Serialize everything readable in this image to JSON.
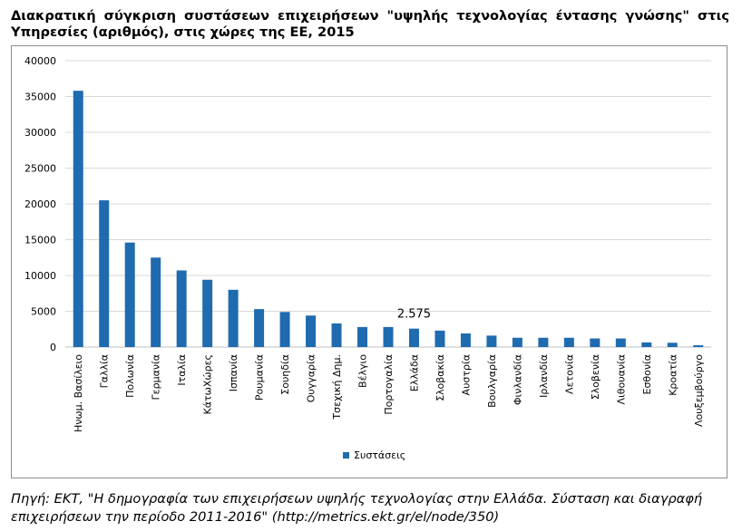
{
  "title": "Διακρατική σύγκριση συστάσεων επιχειρήσεων \"υψηλής τεχνολογίας έντασης γνώσης\" στις Υπηρεσίες (αριθμός), στις χώρες της ΕΕ, 2015",
  "source": "Πηγή: ΕΚΤ, \"Η δημογραφία των επιχειρήσεων υψηλής τεχνολογίας στην Ελλάδα. Σύσταση και διαγραφή επιχειρήσεων την περίοδο 2011-2016\" (http://metrics.ekt.gr/el/node/350)",
  "colors": {
    "bar": "#1f6bb0",
    "grid": "#d9d9d9",
    "axis": "#bfbfbf"
  },
  "chart_data": {
    "type": "bar",
    "title": "",
    "xlabel": "",
    "ylabel": "",
    "ylim": [
      0,
      40000
    ],
    "yticks": [
      "0",
      "5000",
      "10000",
      "15000",
      "20000",
      "25000",
      "30000",
      "35000",
      "40000"
    ],
    "grid": true,
    "legend_position": "bottom",
    "categories": [
      "Ηνωμ. Βασίλειο",
      "Γαλλία",
      "Πολωνία",
      "Γερμανία",
      "Ιταλία",
      "ΚάτωΧώρες",
      "Ισπανία",
      "Ρουμανία",
      "Σουηδία",
      "Ουγγαρία",
      "Τσεχική Δημ.",
      "Βέλγιο",
      "Πορτογαλία",
      "Ελλάδα",
      "Σλοβακία",
      "Αυστρία",
      "Βουλγαρία",
      "Φινλανδία",
      "Ιρλανδία",
      "Λετονία",
      "Σλοβενία",
      "Λιθουανία",
      "Εσθονία",
      "Κροατία",
      "Λουξεμβούργο"
    ],
    "series": [
      {
        "name": "Συστάσεις",
        "values": [
          35800,
          20500,
          14600,
          12500,
          10700,
          9400,
          8000,
          5300,
          4900,
          4400,
          3300,
          2800,
          2800,
          2575,
          2300,
          1900,
          1600,
          1300,
          1300,
          1300,
          1200,
          1200,
          650,
          600,
          250
        ]
      }
    ],
    "annotations": [
      {
        "category": "Ελλάδα",
        "text": "2.575"
      }
    ]
  }
}
